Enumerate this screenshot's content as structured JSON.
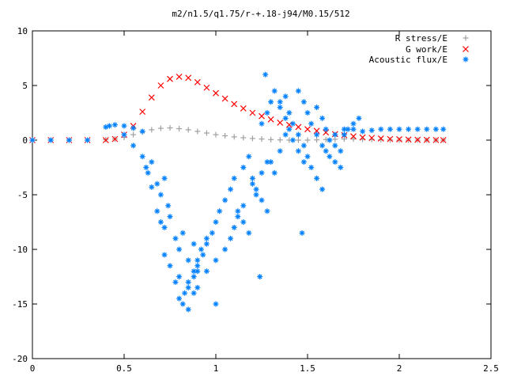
{
  "chart_data": {
    "type": "scatter",
    "title": "m2/n1.5/q1.75/r-+.18-j94/M0.15/512",
    "xlabel": "",
    "ylabel": "",
    "xlim": [
      0,
      2.5
    ],
    "ylim": [
      -20,
      10
    ],
    "x_ticks": [
      "0",
      "0.5",
      "1",
      "1.5",
      "2",
      "2.5"
    ],
    "y_ticks": [
      "10",
      "5",
      "0",
      "-5",
      "-10",
      "-15",
      "-20"
    ],
    "grid": false,
    "legend_position": "top-right",
    "series": [
      {
        "name": "R stress/E",
        "color": "#a0a0a0",
        "marker": "plus",
        "x": [
          0,
          0.1,
          0.2,
          0.3,
          0.4,
          0.45,
          0.5,
          0.55,
          0.6,
          0.65,
          0.7,
          0.75,
          0.8,
          0.85,
          0.9,
          0.95,
          1.0,
          1.05,
          1.1,
          1.15,
          1.2,
          1.25,
          1.3,
          1.35,
          1.4,
          1.45,
          1.5,
          1.55,
          1.6,
          1.65,
          1.7,
          1.75,
          1.8,
          1.85,
          1.9,
          1.95,
          2.0,
          2.05,
          2.1,
          2.15,
          2.2,
          2.24
        ],
        "y": [
          0,
          0,
          0,
          0,
          0.05,
          0.1,
          0.25,
          0.5,
          0.75,
          0.95,
          1.08,
          1.12,
          1.05,
          0.95,
          0.8,
          0.65,
          0.5,
          0.4,
          0.3,
          0.22,
          0.15,
          0.1,
          0.05,
          0.02,
          0,
          0,
          0,
          0.02,
          0.05,
          0.08,
          0.1,
          0.1,
          0.08,
          0.06,
          0.04,
          0.02,
          0,
          0,
          0,
          0,
          0,
          0
        ]
      },
      {
        "name": "G work/E",
        "color": "#ff0000",
        "marker": "cross",
        "x": [
          0,
          0.1,
          0.2,
          0.3,
          0.4,
          0.45,
          0.5,
          0.55,
          0.6,
          0.65,
          0.7,
          0.75,
          0.8,
          0.85,
          0.9,
          0.95,
          1.0,
          1.05,
          1.1,
          1.15,
          1.2,
          1.25,
          1.3,
          1.35,
          1.4,
          1.45,
          1.5,
          1.55,
          1.6,
          1.65,
          1.7,
          1.75,
          1.8,
          1.85,
          1.9,
          1.95,
          2.0,
          2.05,
          2.1,
          2.15,
          2.2,
          2.24
        ],
        "y": [
          0,
          0,
          0,
          0,
          0,
          0.1,
          0.5,
          1.3,
          2.6,
          3.9,
          5.0,
          5.6,
          5.8,
          5.7,
          5.3,
          4.8,
          4.3,
          3.8,
          3.3,
          2.9,
          2.5,
          2.2,
          1.9,
          1.6,
          1.4,
          1.2,
          1.0,
          0.85,
          0.7,
          0.55,
          0.45,
          0.35,
          0.25,
          0.2,
          0.15,
          0.1,
          0.08,
          0.05,
          0.03,
          0.02,
          0.01,
          0
        ]
      },
      {
        "name": "Acoustic flux/E",
        "color": "#0080ff",
        "marker": "star",
        "x": [
          0,
          0.1,
          0.2,
          0.3,
          0.4,
          0.42,
          0.45,
          0.5,
          0.55,
          0.6,
          0.5,
          0.55,
          0.6,
          0.62,
          0.63,
          0.65,
          0.68,
          0.7,
          0.72,
          0.74,
          0.68,
          0.7,
          0.72,
          0.75,
          0.78,
          0.8,
          0.82,
          0.85,
          0.88,
          0.9,
          0.72,
          0.75,
          0.78,
          0.8,
          0.83,
          0.85,
          0.88,
          0.9,
          0.92,
          0.95,
          0.8,
          0.82,
          0.85,
          0.88,
          0.9,
          0.93,
          0.95,
          0.98,
          1.0,
          1.02,
          0.85,
          0.88,
          0.9,
          0.95,
          1.0,
          1.05,
          1.08,
          1.1,
          1.12,
          1.15,
          1.05,
          1.08,
          1.1,
          1.12,
          1.15,
          1.18,
          1.2,
          1.22,
          1.25,
          1.28,
          1.15,
          1.18,
          1.2,
          1.22,
          1.25,
          1.28,
          1.3,
          1.32,
          1.35,
          1.38,
          1.25,
          1.28,
          1.3,
          1.32,
          1.35,
          1.38,
          1.4,
          1.42,
          1.45,
          1.48,
          1.35,
          1.38,
          1.4,
          1.42,
          1.45,
          1.48,
          1.5,
          1.52,
          1.55,
          1.58,
          1.45,
          1.48,
          1.5,
          1.52,
          1.55,
          1.58,
          1.6,
          1.62,
          1.65,
          1.68,
          1.55,
          1.58,
          1.6,
          1.62,
          1.65,
          1.68,
          1.7,
          1.72,
          1.75,
          1.78,
          1.65,
          1.7,
          1.75,
          1.8,
          1.85,
          1.9,
          1.95,
          2.0,
          2.05,
          2.1,
          2.15,
          2.2,
          2.24,
          1.27,
          1.47,
          1.24,
          1.0,
          0.65
        ],
        "y": [
          0,
          0,
          0,
          0,
          1.2,
          1.3,
          1.4,
          1.3,
          1.1,
          0.8,
          0.5,
          -0.5,
          -1.5,
          -2.5,
          -3.0,
          -2.0,
          -4.0,
          -5.0,
          -3.5,
          -6.0,
          -6.5,
          -7.5,
          -8.0,
          -7.0,
          -9.0,
          -10.0,
          -8.5,
          -11.0,
          -9.5,
          -12.0,
          -10.5,
          -11.5,
          -13.0,
          -12.5,
          -14.0,
          -13.5,
          -12.0,
          -11.0,
          -10.0,
          -9.0,
          -14.5,
          -15.0,
          -13.0,
          -12.5,
          -11.5,
          -10.5,
          -9.5,
          -8.5,
          -7.5,
          -6.5,
          -15.5,
          -14.0,
          -13.5,
          -12.0,
          -11.0,
          -10.0,
          -9.0,
          -8.0,
          -7.0,
          -6.0,
          -5.5,
          -4.5,
          -3.5,
          -6.5,
          -7.5,
          -8.5,
          -4.0,
          -5.0,
          -3.0,
          -2.0,
          -2.5,
          -1.5,
          -3.5,
          -4.5,
          -5.5,
          -6.5,
          -2.0,
          -3.0,
          -1.0,
          0.5,
          1.5,
          2.5,
          3.5,
          4.5,
          3.0,
          2.0,
          1.0,
          0.0,
          -1.0,
          -2.0,
          3.5,
          4.0,
          2.5,
          1.5,
          0.5,
          -0.5,
          -1.5,
          -2.5,
          -3.5,
          -4.5,
          4.5,
          3.5,
          2.5,
          1.5,
          0.5,
          -0.5,
          -1.0,
          -1.5,
          -2.0,
          -2.5,
          3.0,
          2.0,
          1.0,
          0.0,
          -0.5,
          -1.0,
          0.5,
          1.0,
          1.5,
          2.0,
          0.5,
          1.0,
          1.0,
          0.8,
          0.9,
          1.0,
          1.0,
          1.0,
          1.0,
          1.0,
          1.0,
          1.0,
          1.0,
          6.0,
          -8.5,
          -12.5,
          -15.0,
          -4.3
        ]
      }
    ]
  }
}
